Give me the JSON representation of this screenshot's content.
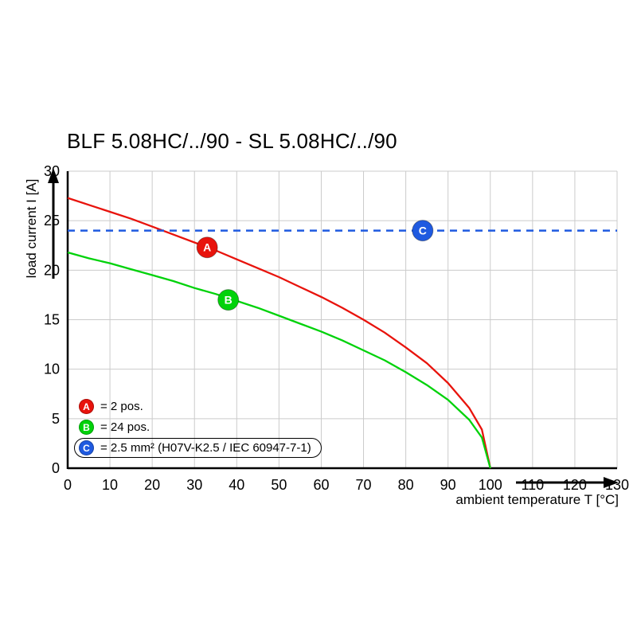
{
  "chart_data": {
    "type": "line",
    "title": "BLF 5.08HC/../90 - SL 5.08HC/../90",
    "xlabel": "ambient temperature T [°C]",
    "ylabel": "load current I [A]",
    "xlim": [
      0,
      130
    ],
    "ylim": [
      0,
      30
    ],
    "xticks": [
      0,
      10,
      20,
      30,
      40,
      50,
      60,
      70,
      80,
      90,
      100,
      110,
      120,
      130
    ],
    "yticks": [
      0,
      5,
      10,
      15,
      20,
      25,
      30
    ],
    "grid": true,
    "legend_position": "inside-bottom-left",
    "series": [
      {
        "name": "A",
        "kind": "curve",
        "color": "#e8130c",
        "x": [
          0,
          5,
          10,
          15,
          20,
          25,
          30,
          35,
          40,
          45,
          50,
          55,
          60,
          65,
          70,
          75,
          80,
          85,
          90,
          95,
          98,
          100
        ],
        "y": [
          27.3,
          26.6,
          25.9,
          25.2,
          24.4,
          23.6,
          22.8,
          22.0,
          21.1,
          20.2,
          19.3,
          18.3,
          17.3,
          16.2,
          15.0,
          13.7,
          12.2,
          10.6,
          8.6,
          6.1,
          3.9,
          0
        ]
      },
      {
        "name": "B",
        "kind": "curve",
        "color": "#00d20a",
        "x": [
          0,
          5,
          10,
          15,
          20,
          25,
          30,
          35,
          40,
          45,
          50,
          55,
          60,
          65,
          70,
          75,
          80,
          85,
          90,
          95,
          98,
          100
        ],
        "y": [
          21.8,
          21.2,
          20.7,
          20.1,
          19.5,
          18.9,
          18.2,
          17.6,
          16.9,
          16.2,
          15.4,
          14.6,
          13.8,
          12.9,
          11.9,
          10.9,
          9.7,
          8.4,
          6.9,
          4.9,
          3.1,
          0
        ]
      },
      {
        "name": "C",
        "kind": "hline",
        "color": "#1f5ae0",
        "dashed": true,
        "y": 24,
        "x_range": [
          0,
          130
        ]
      }
    ],
    "markers": [
      {
        "label": "A",
        "x": 33,
        "y": 22.3,
        "color": "#e8130c"
      },
      {
        "label": "B",
        "x": 38,
        "y": 17.0,
        "color": "#00d20a"
      },
      {
        "label": "C",
        "x": 84,
        "y": 24.0,
        "color": "#1f5ae0"
      }
    ],
    "legend": [
      {
        "badge": "A",
        "color": "#e8130c",
        "text": "= 2 pos.",
        "boxed": false
      },
      {
        "badge": "B",
        "color": "#00d20a",
        "text": "= 24 pos.",
        "boxed": false
      },
      {
        "badge": "C",
        "color": "#1f5ae0",
        "text": "= 2.5 mm² (H07V-K2.5 / IEC 60947-7-1)",
        "boxed": true
      }
    ]
  }
}
